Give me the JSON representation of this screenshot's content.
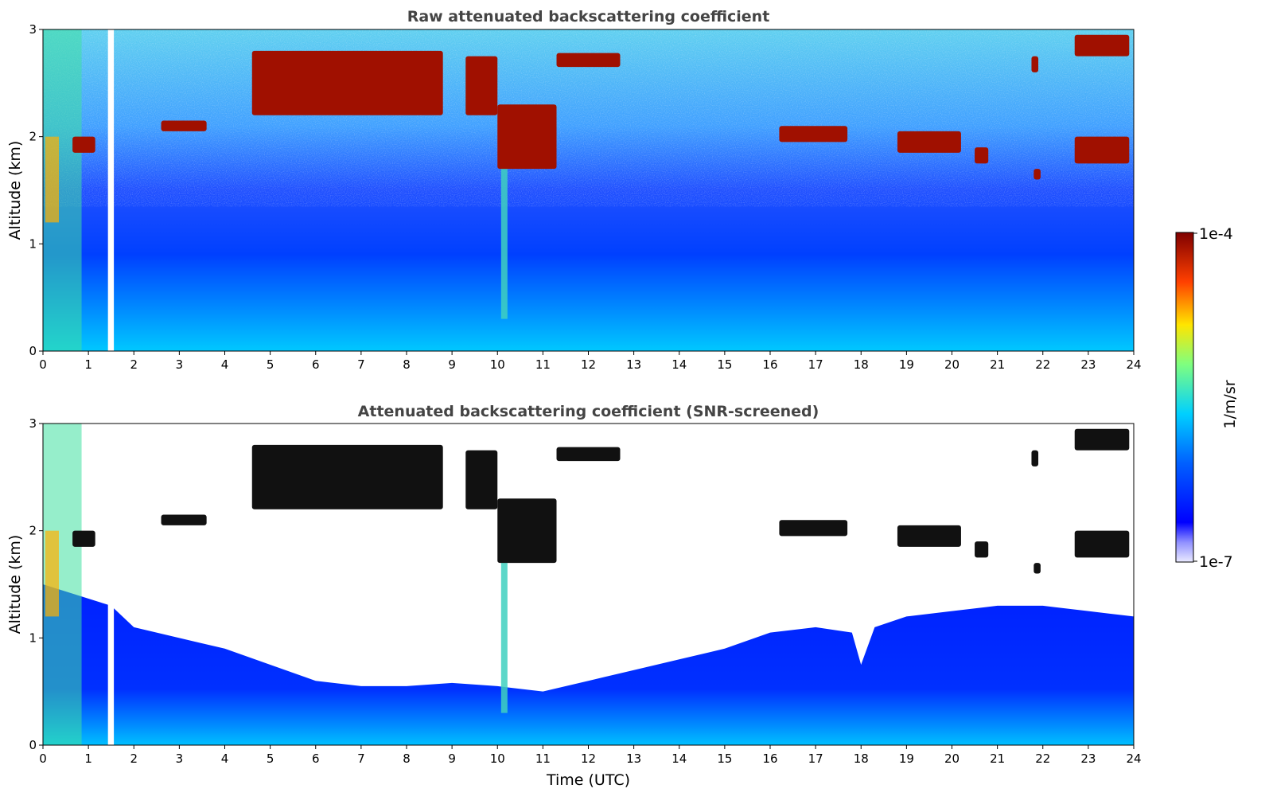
{
  "chart_data": [
    {
      "type": "heatmap",
      "title": "Raw attenuated backscattering coefficient",
      "xlabel": "",
      "ylabel": "Altitude (km)",
      "xlim": [
        0,
        24
      ],
      "ylim": [
        0,
        3
      ],
      "x_ticks": [
        "0",
        "1",
        "2",
        "3",
        "4",
        "5",
        "6",
        "7",
        "8",
        "9",
        "10",
        "11",
        "12",
        "13",
        "14",
        "15",
        "16",
        "17",
        "18",
        "19",
        "20",
        "21",
        "22",
        "23",
        "24"
      ],
      "y_ticks": [
        "0",
        "1",
        "2",
        "3"
      ],
      "grid": false,
      "screened": false,
      "data_gaps": [
        {
          "x": [
            1.43,
            1.56
          ]
        }
      ],
      "cloud_layers": [
        {
          "x": [
            0.65,
            1.15
          ],
          "y": [
            1.85,
            2.0
          ]
        },
        {
          "x": [
            2.6,
            3.6
          ],
          "y": [
            2.05,
            2.15
          ]
        },
        {
          "x": [
            4.6,
            8.8
          ],
          "y": [
            2.2,
            2.8
          ]
        },
        {
          "x": [
            9.3,
            10.0
          ],
          "y": [
            2.2,
            2.75
          ]
        },
        {
          "x": [
            10.0,
            11.3
          ],
          "y": [
            1.7,
            2.3
          ]
        },
        {
          "x": [
            11.3,
            12.7
          ],
          "y": [
            2.65,
            2.78
          ]
        },
        {
          "x": [
            16.2,
            17.7
          ],
          "y": [
            1.95,
            2.1
          ]
        },
        {
          "x": [
            18.8,
            20.2
          ],
          "y": [
            1.85,
            2.05
          ]
        },
        {
          "x": [
            20.5,
            20.8
          ],
          "y": [
            1.75,
            1.9
          ]
        },
        {
          "x": [
            21.8,
            21.95
          ],
          "y": [
            1.6,
            1.7
          ]
        },
        {
          "x": [
            21.75,
            21.9
          ],
          "y": [
            2.6,
            2.75
          ]
        },
        {
          "x": [
            22.7,
            23.9
          ],
          "y": [
            1.75,
            2.0
          ]
        },
        {
          "x": [
            22.7,
            23.9
          ],
          "y": [
            2.75,
            2.95
          ]
        }
      ]
    },
    {
      "type": "heatmap",
      "title": "Attenuated backscattering coefficient (SNR-screened)",
      "xlabel": "Time (UTC)",
      "ylabel": "Altitude (km)",
      "xlim": [
        0,
        24
      ],
      "ylim": [
        0,
        3
      ],
      "x_ticks": [
        "0",
        "1",
        "2",
        "3",
        "4",
        "5",
        "6",
        "7",
        "8",
        "9",
        "10",
        "11",
        "12",
        "13",
        "14",
        "15",
        "16",
        "17",
        "18",
        "19",
        "20",
        "21",
        "22",
        "23",
        "24"
      ],
      "y_ticks": [
        "0",
        "1",
        "2",
        "3"
      ],
      "grid": false,
      "screened": true,
      "data_gaps": [
        {
          "x": [
            1.43,
            1.56
          ]
        }
      ],
      "cloud_layers": [
        {
          "x": [
            0.65,
            1.15
          ],
          "y": [
            1.85,
            2.0
          ]
        },
        {
          "x": [
            2.6,
            3.6
          ],
          "y": [
            2.05,
            2.15
          ]
        },
        {
          "x": [
            4.6,
            8.8
          ],
          "y": [
            2.2,
            2.8
          ]
        },
        {
          "x": [
            9.3,
            10.0
          ],
          "y": [
            2.2,
            2.75
          ]
        },
        {
          "x": [
            10.0,
            11.3
          ],
          "y": [
            1.7,
            2.3
          ]
        },
        {
          "x": [
            11.3,
            12.7
          ],
          "y": [
            2.65,
            2.78
          ]
        },
        {
          "x": [
            16.2,
            17.7
          ],
          "y": [
            1.95,
            2.1
          ]
        },
        {
          "x": [
            18.8,
            20.2
          ],
          "y": [
            1.85,
            2.05
          ]
        },
        {
          "x": [
            20.5,
            20.8
          ],
          "y": [
            1.75,
            1.9
          ]
        },
        {
          "x": [
            21.8,
            21.95
          ],
          "y": [
            1.6,
            1.7
          ]
        },
        {
          "x": [
            21.75,
            21.9
          ],
          "y": [
            2.6,
            2.75
          ]
        },
        {
          "x": [
            22.7,
            23.9
          ],
          "y": [
            1.75,
            2.0
          ]
        },
        {
          "x": [
            22.7,
            23.9
          ],
          "y": [
            2.75,
            2.95
          ]
        }
      ],
      "boundary_layer_top": [
        {
          "x": 0,
          "y": 1.5
        },
        {
          "x": 1.5,
          "y": 1.3
        },
        {
          "x": 2,
          "y": 1.1
        },
        {
          "x": 3,
          "y": 1.0
        },
        {
          "x": 4,
          "y": 0.9
        },
        {
          "x": 5,
          "y": 0.75
        },
        {
          "x": 6,
          "y": 0.6
        },
        {
          "x": 7,
          "y": 0.55
        },
        {
          "x": 8,
          "y": 0.55
        },
        {
          "x": 9,
          "y": 0.58
        },
        {
          "x": 10,
          "y": 0.55
        },
        {
          "x": 11,
          "y": 0.5
        },
        {
          "x": 12,
          "y": 0.6
        },
        {
          "x": 13,
          "y": 0.7
        },
        {
          "x": 14,
          "y": 0.8
        },
        {
          "x": 15,
          "y": 0.9
        },
        {
          "x": 16,
          "y": 1.05
        },
        {
          "x": 17,
          "y": 1.1
        },
        {
          "x": 17.8,
          "y": 1.05
        },
        {
          "x": 18,
          "y": 0.75
        },
        {
          "x": 18.3,
          "y": 1.1
        },
        {
          "x": 19,
          "y": 1.2
        },
        {
          "x": 20,
          "y": 1.25
        },
        {
          "x": 21,
          "y": 1.3
        },
        {
          "x": 22,
          "y": 1.3
        },
        {
          "x": 23,
          "y": 1.25
        },
        {
          "x": 24,
          "y": 1.2
        }
      ]
    }
  ],
  "colorbar": {
    "label": "1/m/sr",
    "max_label": "1e-4",
    "min_label": "1e-7",
    "scale": "log",
    "colormap": "jet",
    "stops": [
      "#00007f",
      "#0000ff",
      "#0080ff",
      "#00e5ff",
      "#7fff7f",
      "#ffe500",
      "#ff4000",
      "#7f0000"
    ]
  }
}
